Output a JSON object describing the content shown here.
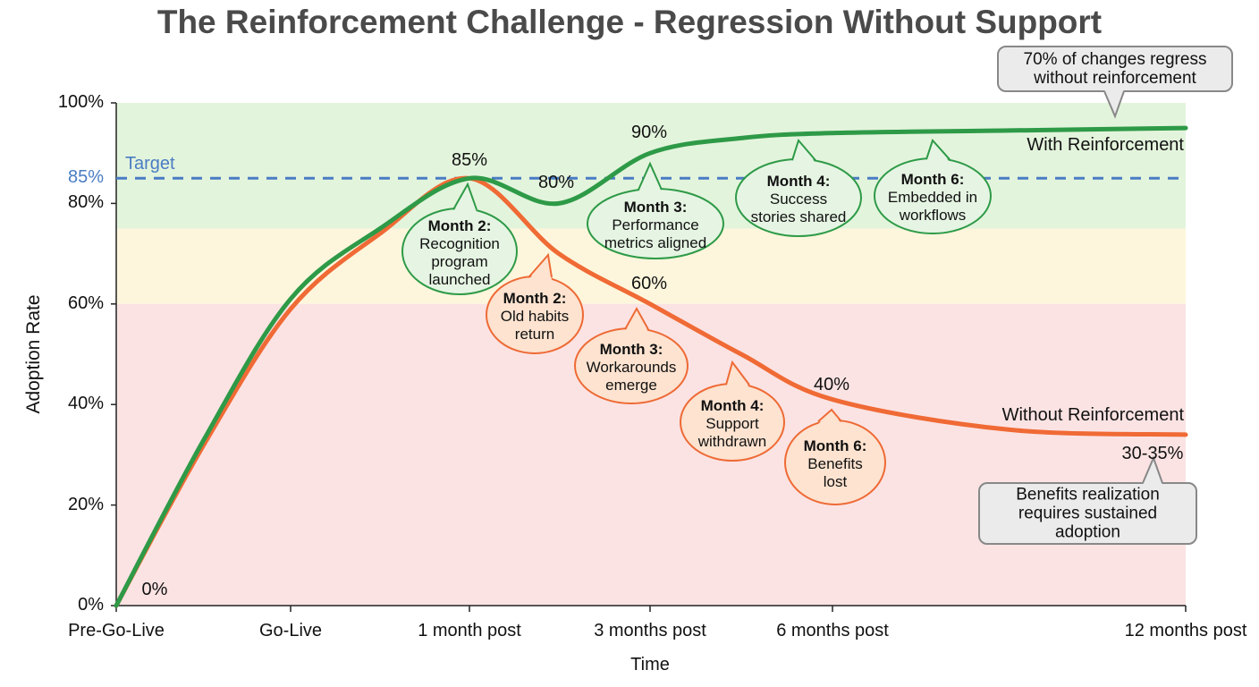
{
  "chart_data": {
    "type": "line",
    "title": "The Reinforcement Challenge - Regression Without Support",
    "xlabel": "Time",
    "ylabel": "Adoption Rate",
    "categories": [
      "Pre-Go-Live",
      "Go-Live",
      "1 month post",
      "3 months post",
      "6 months post",
      "12 months post"
    ],
    "yticks": [
      "0%",
      "20%",
      "40%",
      "60%",
      "80%",
      "100%"
    ],
    "ylim": [
      0,
      100
    ],
    "grid": false,
    "zones": [
      {
        "from": 75,
        "to": 100,
        "color": "#e3f4dc"
      },
      {
        "from": 60,
        "to": 75,
        "color": "#fdf6dc"
      },
      {
        "from": 0,
        "to": 60,
        "color": "#fbe3e3"
      }
    ],
    "target": {
      "value": 85,
      "label": "Target",
      "axis_label": "85%",
      "color": "#4a7cc4"
    },
    "series": [
      {
        "name": "With Reinforcement",
        "color": "#2e9a47",
        "points": [
          [
            "Pre-Go-Live",
            0
          ],
          [
            "",
            33
          ],
          [
            "Go-Live",
            61
          ],
          [
            "",
            75
          ],
          [
            "1 month post",
            85
          ],
          [
            "",
            80
          ],
          [
            "3 months post",
            90
          ],
          [
            "",
            93
          ],
          [
            "6 months post",
            94
          ],
          [
            "",
            94.5
          ],
          [
            "12 months post",
            95
          ]
        ]
      },
      {
        "name": "Without Reinforcement",
        "color": "#f06a35",
        "points": [
          [
            "Pre-Go-Live",
            0
          ],
          [
            "",
            32
          ],
          [
            "Go-Live",
            59
          ],
          [
            "",
            74
          ],
          [
            "1 month post",
            85
          ],
          [
            "",
            70
          ],
          [
            "3 months post",
            60
          ],
          [
            "",
            50
          ],
          [
            "6 months post",
            41
          ],
          [
            "",
            35
          ],
          [
            "12 months post",
            34
          ]
        ]
      }
    ],
    "data_labels": [
      "0%",
      "85%",
      "80%",
      "90%",
      "60%",
      "40%",
      "30-35%"
    ],
    "annotations": {
      "with": [
        {
          "head": "Month 2:",
          "body": [
            "Recognition",
            "program",
            "launched"
          ]
        },
        {
          "head": "Month 3:",
          "body": [
            "Performance",
            "metrics aligned"
          ]
        },
        {
          "head": "Month 4:",
          "body": [
            "Success",
            "stories shared"
          ]
        },
        {
          "head": "Month 6:",
          "body": [
            "Embedded in",
            "workflows"
          ]
        }
      ],
      "without": [
        {
          "head": "Month 2:",
          "body": [
            "Old habits",
            "return"
          ]
        },
        {
          "head": "Month 3:",
          "body": [
            "Workarounds",
            "emerge"
          ]
        },
        {
          "head": "Month 4:",
          "body": [
            "Support",
            "withdrawn"
          ]
        },
        {
          "head": "Month 6:",
          "body": [
            "Benefits",
            "lost"
          ]
        }
      ],
      "notes": [
        {
          "lines": [
            "70% of changes regress",
            "without reinforcement"
          ]
        },
        {
          "lines": [
            "Benefits realization",
            "requires sustained",
            "adoption"
          ]
        }
      ]
    }
  }
}
